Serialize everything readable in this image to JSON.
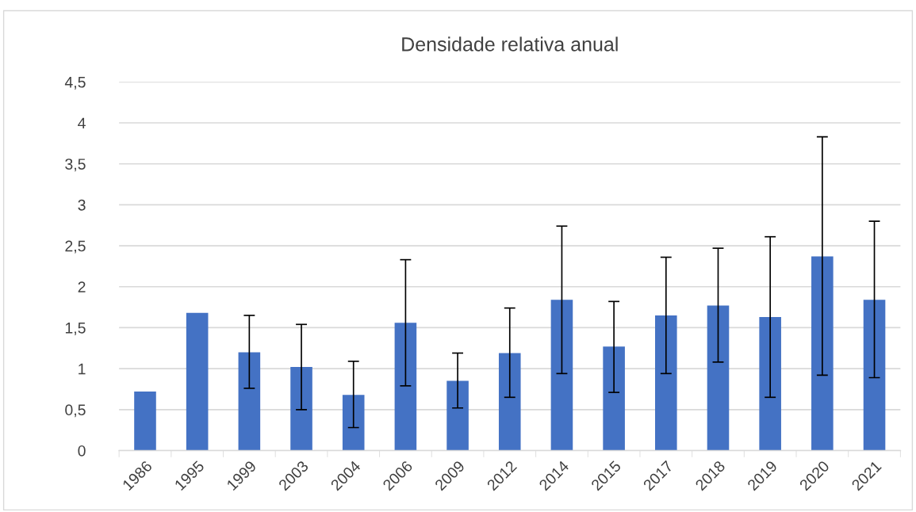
{
  "chart_data": {
    "type": "bar",
    "title": "Densidade relativa anual",
    "categories": [
      "1986",
      "1995",
      "1999",
      "2003",
      "2004",
      "2006",
      "2009",
      "2012",
      "2014",
      "2015",
      "2017",
      "2018",
      "2019",
      "2020",
      "2021"
    ],
    "values": [
      0.72,
      1.68,
      1.2,
      1.02,
      0.68,
      1.56,
      0.85,
      1.19,
      1.84,
      1.27,
      1.65,
      1.77,
      1.63,
      2.37,
      1.84
    ],
    "errors": [
      null,
      null,
      [
        0.76,
        1.65
      ],
      [
        0.5,
        1.54
      ],
      [
        0.28,
        1.09
      ],
      [
        0.79,
        2.33
      ],
      [
        0.52,
        1.19
      ],
      [
        0.65,
        1.74
      ],
      [
        0.94,
        2.74
      ],
      [
        0.71,
        1.82
      ],
      [
        0.94,
        2.36
      ],
      [
        1.08,
        2.47
      ],
      [
        0.65,
        2.61
      ],
      [
        0.92,
        3.83
      ],
      [
        0.89,
        2.8
      ]
    ],
    "color": "#4472c4",
    "ylim": [
      0,
      4.5
    ],
    "yticks": [
      0,
      {
        "value": 0.5,
        "label": "0,5"
      },
      1,
      {
        "value": 1.5,
        "label": "1,5"
      },
      2,
      {
        "value": 2.5,
        "label": "2,5"
      },
      3,
      {
        "value": 3.5,
        "label": "3,5"
      },
      4,
      {
        "value": 4.5,
        "label": "4,5"
      }
    ],
    "grid": "y"
  }
}
